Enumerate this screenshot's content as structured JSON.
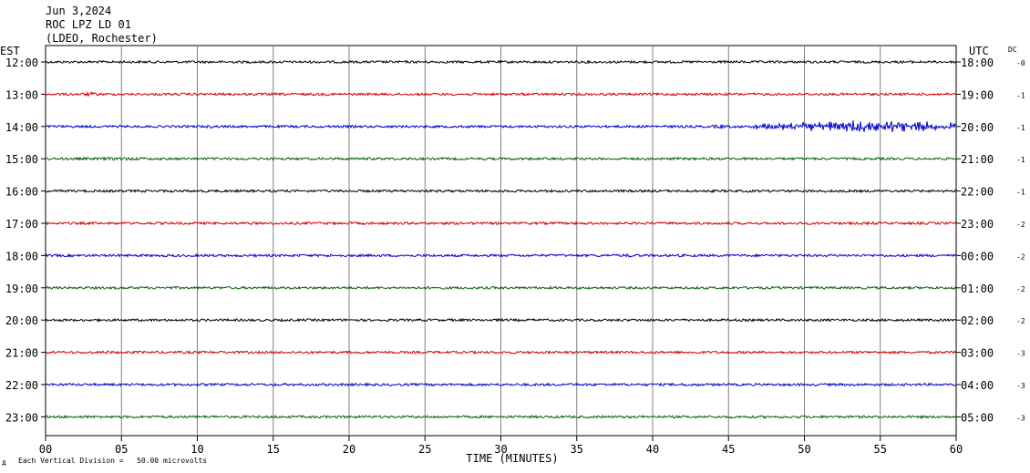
{
  "header": {
    "date": "Jun 3,2024",
    "station": "ROC LPZ LD 01",
    "network": "(LDEO, Rochester)"
  },
  "left_axis_title": "EST",
  "right_axis_title": "UTC",
  "dc_title": "DC",
  "footer": {
    "mark": "д",
    "scale_note": "Each Vertical Division =   50.00 microvolts"
  },
  "chart_data": {
    "type": "line",
    "title": "",
    "xlabel": "TIME (MINUTES)",
    "ylabel": "",
    "xlim": [
      0,
      60
    ],
    "x_ticks": [
      "00",
      "05",
      "10",
      "15",
      "20",
      "25",
      "30",
      "35",
      "40",
      "45",
      "50",
      "55",
      "60"
    ],
    "grid": true,
    "trace_colors": [
      "#000000",
      "#d00000",
      "#0000c8",
      "#006400"
    ],
    "rows": [
      {
        "est": "12:00",
        "utc": "18:00",
        "dc": "-0"
      },
      {
        "est": "13:00",
        "utc": "19:00",
        "dc": "-1"
      },
      {
        "est": "14:00",
        "utc": "20:00",
        "dc": "-1"
      },
      {
        "est": "15:00",
        "utc": "21:00",
        "dc": "-1"
      },
      {
        "est": "16:00",
        "utc": "22:00",
        "dc": "-1"
      },
      {
        "est": "17:00",
        "utc": "23:00",
        "dc": "-2"
      },
      {
        "est": "18:00",
        "utc": "00:00",
        "dc": "-2"
      },
      {
        "est": "19:00",
        "utc": "01:00",
        "dc": "-2"
      },
      {
        "est": "20:00",
        "utc": "02:00",
        "dc": "-2"
      },
      {
        "est": "21:00",
        "utc": "03:00",
        "dc": "-3"
      },
      {
        "est": "22:00",
        "utc": "04:00",
        "dc": "-3"
      },
      {
        "est": "23:00",
        "utc": "05:00",
        "dc": "-3"
      }
    ]
  }
}
